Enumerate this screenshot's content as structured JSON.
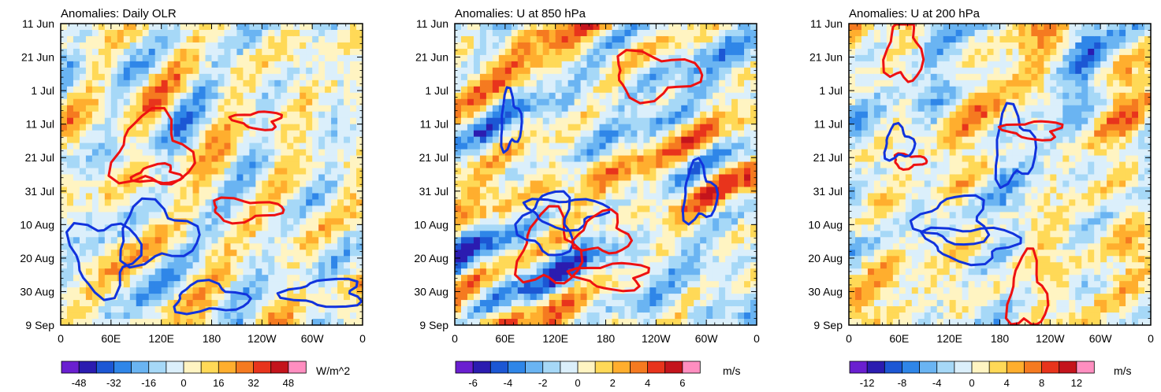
{
  "chart_data": [
    {
      "type": "heatmap",
      "title": "Anomalies: Daily OLR",
      "x_ticks": [
        "0",
        "60E",
        "120E",
        "180",
        "120W",
        "60W",
        "0"
      ],
      "y_ticks": [
        "11 Jun",
        "21 Jun",
        "1 Jul",
        "11 Jul",
        "21 Jul",
        "31 Jul",
        "10 Aug",
        "20 Aug",
        "30 Aug",
        "9 Sep"
      ],
      "colorbar": {
        "labels": [
          "-48",
          "-32",
          "-16",
          "0",
          "16",
          "32",
          "48"
        ],
        "units": "W/m^2",
        "range": [
          -56,
          56
        ]
      },
      "colors": {
        "positive_contour": "#ee1111",
        "negative_contour": "#1133dd"
      },
      "seed": 11
    },
    {
      "type": "heatmap",
      "title": "Anomalies: U at 850 hPa",
      "x_ticks": [
        "0",
        "60E",
        "120E",
        "180",
        "120W",
        "60W",
        "0"
      ],
      "y_ticks": [
        "11 Jun",
        "21 Jun",
        "1 Jul",
        "11 Jul",
        "21 Jul",
        "31 Jul",
        "10 Aug",
        "20 Aug",
        "30 Aug",
        "9 Sep"
      ],
      "colorbar": {
        "labels": [
          "-6",
          "-4",
          "-2",
          "0",
          "2",
          "4",
          "6"
        ],
        "units": "m/s",
        "range": [
          -7,
          7
        ]
      },
      "colors": {
        "positive_contour": "#ee1111",
        "negative_contour": "#1133dd"
      },
      "seed": 29
    },
    {
      "type": "heatmap",
      "title": "Anomalies: U at 200 hPa",
      "x_ticks": [
        "0",
        "60E",
        "120E",
        "180",
        "120W",
        "60W",
        "0"
      ],
      "y_ticks": [
        "11 Jun",
        "21 Jun",
        "1 Jul",
        "11 Jul",
        "21 Jul",
        "31 Jul",
        "10 Aug",
        "20 Aug",
        "30 Aug",
        "9 Sep"
      ],
      "colorbar": {
        "labels": [
          "-12",
          "-8",
          "-4",
          "0",
          "4",
          "8",
          "12"
        ],
        "units": "m/s",
        "range": [
          -14,
          14
        ]
      },
      "colors": {
        "positive_contour": "#ee1111",
        "negative_contour": "#1133dd"
      },
      "seed": 53
    }
  ]
}
